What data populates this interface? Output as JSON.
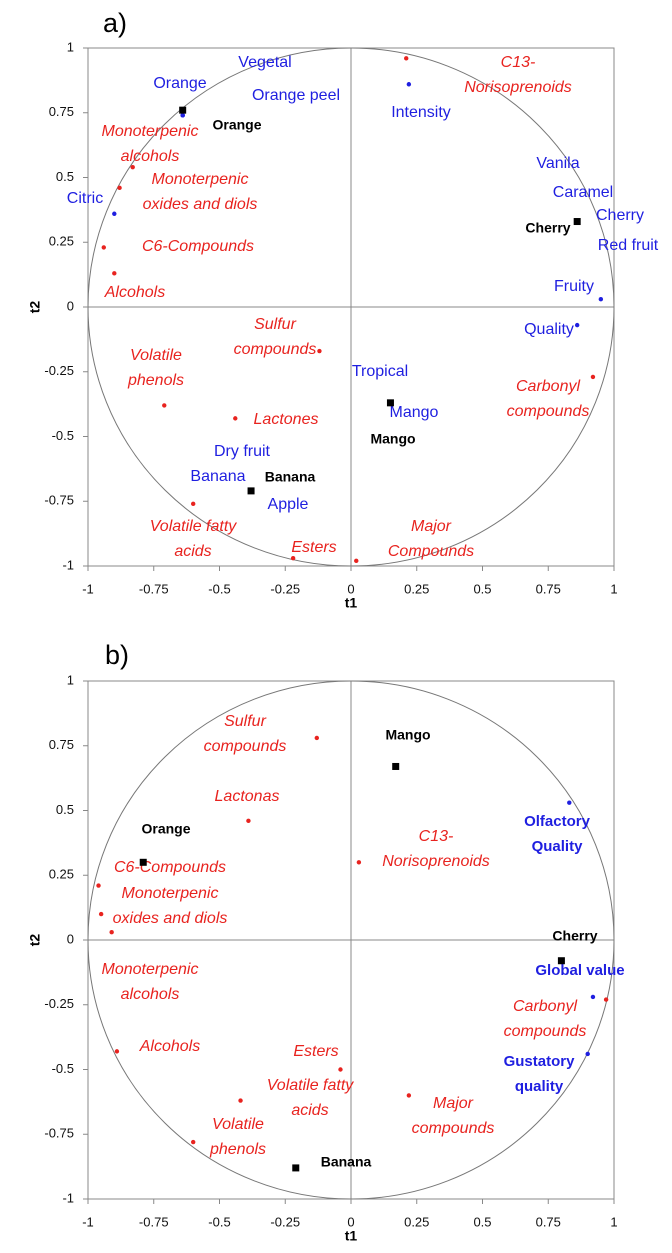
{
  "chart_data": [
    {
      "type": "scatter",
      "panel_label": "a)",
      "xlabel": "t1",
      "ylabel": "t2",
      "xlim": [
        -1,
        1
      ],
      "ylim": [
        -1,
        1
      ],
      "xticks": [
        -1,
        -0.75,
        -0.5,
        -0.25,
        0,
        0.25,
        0.5,
        0.75,
        1
      ],
      "yticks": [
        -1,
        -0.75,
        -0.5,
        -0.25,
        0,
        0.25,
        0.5,
        0.75,
        1
      ],
      "series": [
        {
          "color": "#e8231f",
          "marker": "dot",
          "label_style": "italic",
          "x": [
            0.21,
            -0.83,
            -0.88,
            -0.94,
            -0.9,
            -0.12,
            -0.71,
            -0.44,
            0.92,
            -0.6,
            -0.22,
            0.02
          ],
          "y": [
            0.96,
            0.54,
            0.46,
            0.23,
            0.13,
            -0.17,
            -0.38,
            -0.43,
            -0.27,
            -0.76,
            -0.97,
            -0.98
          ],
          "labels": [
            [
              "C13-",
              "Norisoprenoids"
            ],
            [
              "Monoterpenic",
              "alcohols"
            ],
            [
              "Monoterpenic",
              "oxides and diols"
            ],
            [
              "C6-Compounds"
            ],
            [
              "Alcohols"
            ],
            [
              "Sulfur",
              "compounds"
            ],
            [
              "Volatile",
              "phenols"
            ],
            [
              "Lactones"
            ],
            [
              "Carbonyl",
              "compounds"
            ],
            [
              "Volatile fatty",
              "acids"
            ],
            [
              "Esters"
            ],
            [
              "Major",
              "Compounds"
            ]
          ]
        },
        {
          "color": "#1f1fe0",
          "marker": "dot",
          "label_style": "normal",
          "x": [
            -0.64,
            -0.64,
            -0.64,
            0.22,
            -0.9,
            0.86,
            0.86,
            0.86,
            0.86,
            0.95,
            0.86,
            0.15,
            0.15,
            -0.38,
            -0.38,
            -0.38
          ],
          "y": [
            0.74,
            0.74,
            0.74,
            0.86,
            0.36,
            0.33,
            0.33,
            0.33,
            0.33,
            0.03,
            -0.07,
            -0.37,
            -0.37,
            -0.71,
            -0.71,
            -0.71
          ],
          "labels": [
            [
              "Orange"
            ],
            [
              "Vegetal"
            ],
            [
              "Orange peel"
            ],
            [
              "Intensity"
            ],
            [
              "Citric"
            ],
            [
              "Vanila"
            ],
            [
              "Caramel"
            ],
            [
              "Cherry"
            ],
            [
              "Red fruit"
            ],
            [
              "Fruity"
            ],
            [
              "Quality"
            ],
            [
              "Tropical"
            ],
            [
              "Mango"
            ],
            [
              "Dry fruit"
            ],
            [
              "Banana"
            ],
            [
              "Apple"
            ]
          ]
        },
        {
          "color": "#000000",
          "marker": "square",
          "label_style": "bold",
          "x": [
            -0.64,
            0.86,
            0.15,
            -0.38
          ],
          "y": [
            0.76,
            0.33,
            -0.37,
            -0.71
          ],
          "labels": [
            [
              "Orange"
            ],
            [
              "Cherry"
            ],
            [
              "Mango"
            ],
            [
              "Banana"
            ]
          ]
        }
      ]
    },
    {
      "type": "scatter",
      "panel_label": "b)",
      "xlabel": "t1",
      "ylabel": "t2",
      "xlim": [
        -1,
        1
      ],
      "ylim": [
        -1,
        1
      ],
      "xticks": [
        -1,
        -0.75,
        -0.5,
        -0.25,
        0,
        0.25,
        0.5,
        0.75,
        1
      ],
      "yticks": [
        -1,
        -0.75,
        -0.5,
        -0.25,
        0,
        0.25,
        0.5,
        0.75,
        1
      ],
      "series": [
        {
          "color": "#e8231f",
          "marker": "dot",
          "label_style": "italic",
          "x": [
            -0.13,
            -0.39,
            0.03,
            -0.96,
            -0.95,
            -0.91,
            -0.89,
            -0.04,
            -0.42,
            -0.6,
            0.22,
            0.97
          ],
          "y": [
            0.78,
            0.46,
            0.3,
            0.21,
            0.1,
            0.03,
            -0.43,
            -0.5,
            -0.62,
            -0.78,
            -0.6,
            -0.23
          ],
          "labels": [
            [
              "Sulfur",
              "compounds"
            ],
            [
              "Lactonas"
            ],
            [
              "C13-",
              "Norisoprenoids"
            ],
            [
              "C6-Compounds"
            ],
            [
              "Monoterpenic",
              "oxides and diols"
            ],
            [
              "Monoterpenic",
              "alcohols"
            ],
            [
              "Alcohols"
            ],
            [
              "Esters"
            ],
            [
              "Volatile fatty",
              "acids"
            ],
            [
              "Volatile",
              "phenols"
            ],
            [
              "Major",
              "compounds"
            ],
            [
              "Carbonyl",
              "compounds"
            ]
          ]
        },
        {
          "color": "#1f1fe0",
          "marker": "dot",
          "label_style": "bold",
          "x": [
            0.83,
            0.92,
            0.9
          ],
          "y": [
            0.53,
            -0.22,
            -0.44
          ],
          "labels": [
            [
              "Olfactory",
              "Quality"
            ],
            [
              "Global value"
            ],
            [
              "Gustatory",
              "quality"
            ]
          ]
        },
        {
          "color": "#000000",
          "marker": "square",
          "label_style": "bold",
          "x": [
            0.17,
            -0.79,
            0.8,
            -0.21
          ],
          "y": [
            0.67,
            0.3,
            -0.08,
            -0.88
          ],
          "labels": [
            [
              "Mango"
            ],
            [
              "Orange"
            ],
            [
              "Cherry"
            ],
            [
              "Banana"
            ]
          ]
        }
      ]
    }
  ]
}
